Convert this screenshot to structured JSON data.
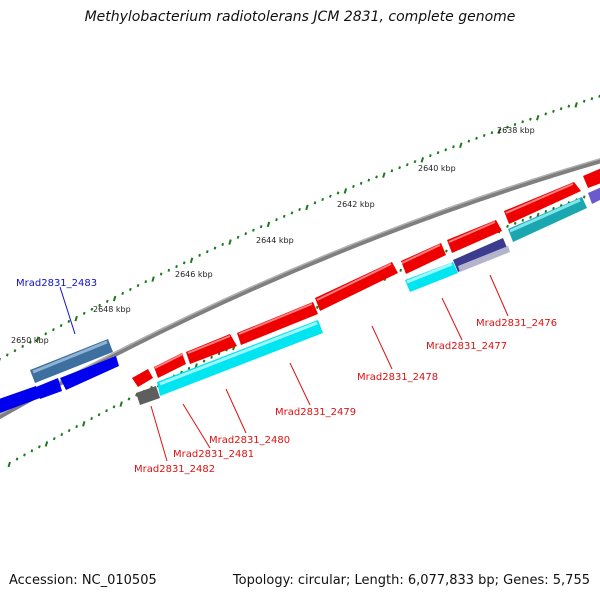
{
  "title": "Methylobacterium radiotolerans JCM 2831, complete genome",
  "footer": {
    "accession": "Accession: NC_010505",
    "summary": "Topology: circular; Length: 6,077,833 bp; Genes: 5,755"
  },
  "scale_labels": [
    "2638 kbp",
    "2640 kbp",
    "2642 kbp",
    "2644 kbp",
    "2646 kbp",
    "2648 kbp",
    "2650 kbp"
  ],
  "gene_labels": [
    {
      "text": "Mrad2831_2483",
      "color": "#1010cc"
    },
    {
      "text": "Mrad2831_2476",
      "color": "#dd1111"
    },
    {
      "text": "Mrad2831_2477",
      "color": "#dd1111"
    },
    {
      "text": "Mrad2831_2478",
      "color": "#dd1111"
    },
    {
      "text": "Mrad2831_2479",
      "color": "#dd1111"
    },
    {
      "text": "Mrad2831_2480",
      "color": "#dd1111"
    },
    {
      "text": "Mrad2831_2481",
      "color": "#dd1111"
    },
    {
      "text": "Mrad2831_2482",
      "color": "#dd1111"
    }
  ],
  "colors": {
    "backbone": "#8a8a8a",
    "tick": "#1a7a1a",
    "red": "#ee0000",
    "cyan": "#00e5f0",
    "teal": "#1aa7b0",
    "blue": "#0000ee",
    "steel": "#3d6fa0",
    "navy": "#3b3b8f",
    "gray": "#666666",
    "lavender": "#b4b4cc"
  }
}
